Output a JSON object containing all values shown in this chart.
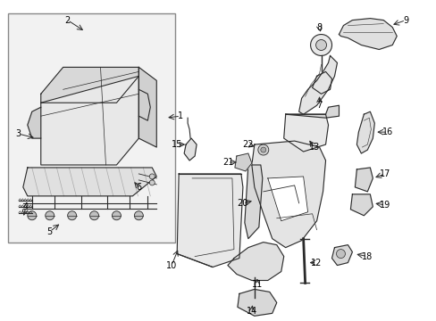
{
  "background_color": "#ffffff",
  "line_color": "#2a2a2a",
  "text_color": "#000000",
  "fill_color": "#e8e8e8",
  "figsize": [
    4.89,
    3.6
  ],
  "dpi": 100
}
